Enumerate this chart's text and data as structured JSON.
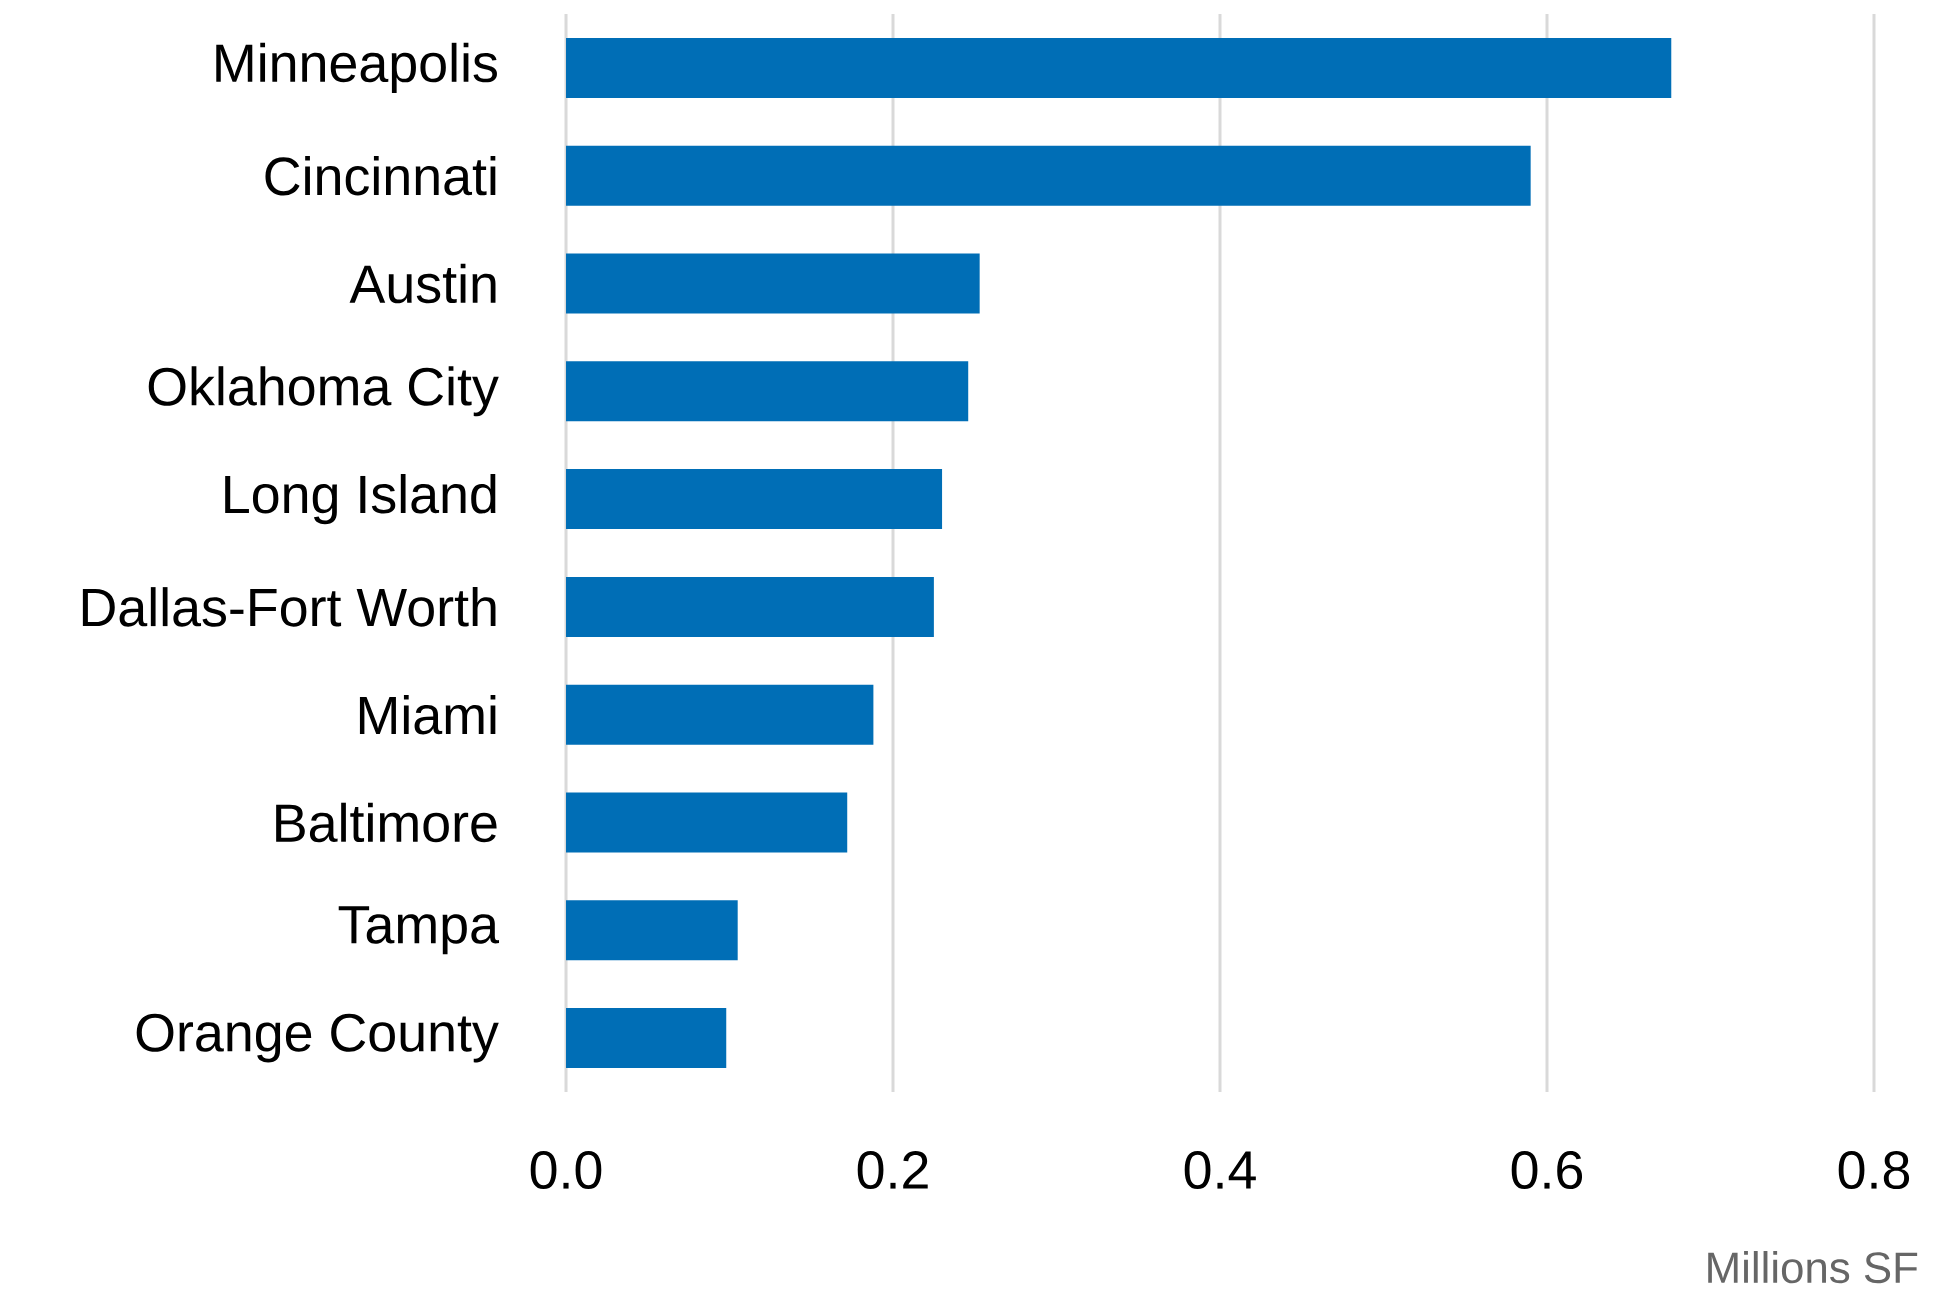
{
  "chart_data": {
    "type": "bar",
    "orientation": "horizontal",
    "xlabel": "Millions SF",
    "categories": [
      "Minneapolis",
      "Cincinnati",
      "Austin",
      "Oklahoma City",
      "Long Island",
      "Dallas-Fort Worth",
      "Miami",
      "Baltimore",
      "Tampa",
      "Orange County"
    ],
    "values": [
      0.676,
      0.59,
      0.253,
      0.246,
      0.23,
      0.225,
      0.188,
      0.172,
      0.105,
      0.098
    ],
    "color": "#006eb6",
    "xlim": [
      0,
      0.8
    ],
    "xticks": [
      {
        "value": 0,
        "label": "0.0"
      },
      {
        "value": 0.2,
        "label": "0.2"
      },
      {
        "value": 0.4,
        "label": "0.4"
      },
      {
        "value": 0.6,
        "label": "0.6"
      },
      {
        "value": 0.8,
        "label": "0.8"
      }
    ],
    "grid": "x"
  }
}
